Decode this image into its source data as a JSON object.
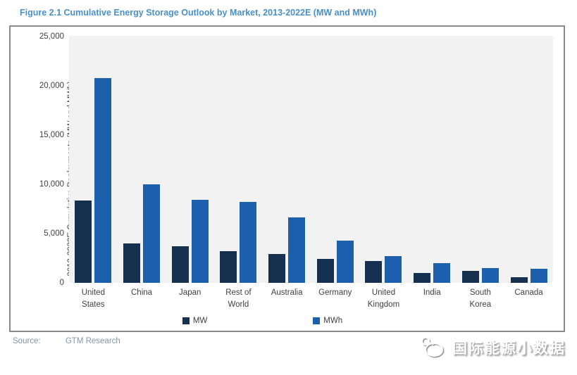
{
  "header": {
    "title": "Figure 2.1  Cumulative Energy Storage Outlook by Market, 2013-2022E (MW and MWh)"
  },
  "chart_data": {
    "type": "bar",
    "title": "Figure 2.1  Cumulative Energy Storage Outlook by Market, 2013-2022E (MW and MWh)",
    "ylabel": "2013-2022E Cumulative Deployments (MW and MWh)",
    "ylim": [
      0,
      25000
    ],
    "yticks": [
      0,
      5000,
      10000,
      15000,
      20000,
      25000
    ],
    "ytick_labels": [
      "0",
      "5,000",
      "10,000",
      "15,000",
      "20,000",
      "25,000"
    ],
    "grid": false,
    "legend_position": "bottom",
    "plot_background": "#f2f2f2",
    "categories": [
      "United States",
      "China",
      "Japan",
      "Rest of World",
      "Australia",
      "Germany",
      "United Kingdom",
      "India",
      "South Korea",
      "Canada"
    ],
    "category_lines": [
      [
        "United",
        "States"
      ],
      [
        "China"
      ],
      [
        "Japan"
      ],
      [
        "Rest of",
        "World"
      ],
      [
        "Australia"
      ],
      [
        "Germany"
      ],
      [
        "United",
        "Kingdom"
      ],
      [
        "India"
      ],
      [
        "South",
        "Korea"
      ],
      [
        "Canada"
      ]
    ],
    "series": [
      {
        "name": "MW",
        "color": "#16304f",
        "values": [
          8300,
          4000,
          3700,
          3200,
          2900,
          2400,
          2200,
          1000,
          1200,
          600
        ]
      },
      {
        "name": "MWh",
        "color": "#1c5fac",
        "values": [
          20700,
          10000,
          8400,
          8200,
          6600,
          4300,
          2700,
          2000,
          1500,
          1400
        ]
      }
    ]
  },
  "source": {
    "label": "Source:",
    "value": "GTM Research"
  },
  "watermark": {
    "text": "国际能源小数据",
    "icon": "penguin-logo-icon"
  },
  "colors": {
    "title_blue": "#4a8fc7",
    "mw_bar": "#16304f",
    "mwh_bar": "#1c5fac",
    "plot_bg": "#f2f2f2",
    "frame_border": "#8a8a8a",
    "axis_text": "#404040",
    "source_text": "#8096a8"
  }
}
